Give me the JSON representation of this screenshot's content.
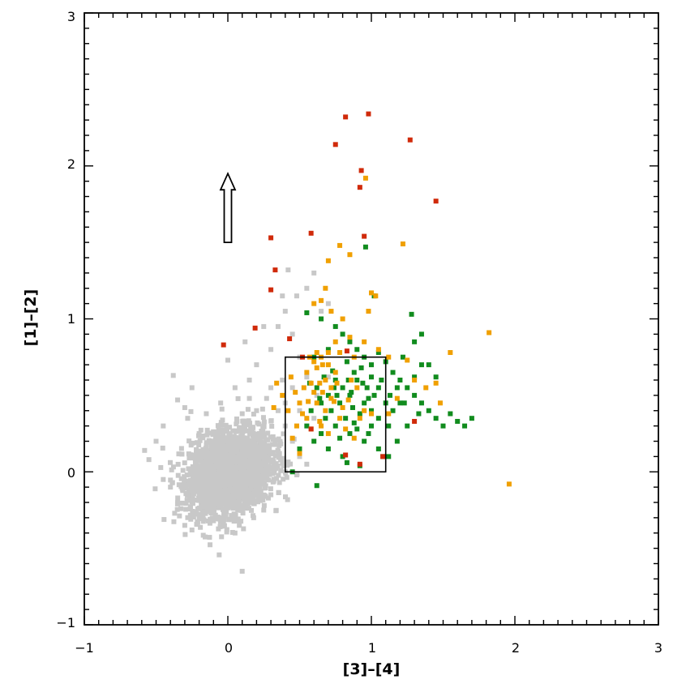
{
  "chart_data": {
    "type": "scatter",
    "title": "",
    "xlabel": "[3]–[4]",
    "ylabel": "[1]–[2]",
    "xlim": [
      -1,
      3
    ],
    "ylim": [
      -1,
      3
    ],
    "x_ticks": [
      -1,
      0,
      1,
      2,
      3
    ],
    "y_ticks": [
      -1,
      0,
      1,
      2,
      3
    ],
    "x_tick_labels": [
      "−1",
      "0",
      "1",
      "2",
      "3"
    ],
    "y_tick_labels": [
      "−1",
      "0",
      "1",
      "2",
      "3"
    ],
    "grid": false,
    "legend": "none",
    "colors": {
      "gray": "#c8c8c8",
      "green": "#118c1e",
      "orange": "#f0a000",
      "red": "#d02a0a",
      "axes": "#000000"
    },
    "box": {
      "x": [
        0.4,
        1.1
      ],
      "y": [
        0.0,
        0.75
      ]
    },
    "arrow": {
      "x": 0.0,
      "y_start": 1.5,
      "y_end": 1.95
    },
    "gray_cloud": {
      "center": [
        0.02,
        0.0
      ],
      "spread": [
        0.14,
        0.13
      ],
      "count": 2600,
      "extra_points": [
        [
          -0.58,
          0.14
        ],
        [
          -0.55,
          0.08
        ],
        [
          -0.5,
          0.2
        ],
        [
          -0.45,
          0.3
        ],
        [
          -0.38,
          0.63
        ],
        [
          -0.35,
          0.47
        ],
        [
          -0.28,
          0.35
        ],
        [
          -0.25,
          0.55
        ],
        [
          -0.3,
          0.42
        ],
        [
          -0.2,
          0.25
        ],
        [
          -0.05,
          0.45
        ],
        [
          0.05,
          0.55
        ],
        [
          0.0,
          0.73
        ],
        [
          0.12,
          0.85
        ],
        [
          0.15,
          0.6
        ],
        [
          0.2,
          0.7
        ],
        [
          0.3,
          0.8
        ],
        [
          0.35,
          0.95
        ],
        [
          0.4,
          1.05
        ],
        [
          0.45,
          0.9
        ],
        [
          0.5,
          0.75
        ],
        [
          0.55,
          0.62
        ],
        [
          0.45,
          0.55
        ],
        [
          0.55,
          1.2
        ],
        [
          0.6,
          1.3
        ],
        [
          0.7,
          1.1
        ],
        [
          0.48,
          1.15
        ],
        [
          0.25,
          0.95
        ],
        [
          0.38,
          1.15
        ],
        [
          0.42,
          1.32
        ],
        [
          0.65,
          1.05
        ],
        [
          0.3,
          0.55
        ],
        [
          0.35,
          0.4
        ],
        [
          0.4,
          0.3
        ],
        [
          0.45,
          0.2
        ],
        [
          0.5,
          0.1
        ],
        [
          0.55,
          0.05
        ],
        [
          0.6,
          0.35
        ],
        [
          0.62,
          0.5
        ],
        [
          0.7,
          0.62
        ],
        [
          0.25,
          0.3
        ],
        [
          0.33,
          0.2
        ],
        [
          0.4,
          0.45
        ],
        [
          0.5,
          0.4
        ],
        [
          0.38,
          0.6
        ],
        [
          0.27,
          0.48
        ],
        [
          0.22,
          0.12
        ],
        [
          -0.35,
          -0.2
        ],
        [
          -0.3,
          -0.35
        ],
        [
          -0.25,
          -0.38
        ],
        [
          -0.2,
          -0.3
        ],
        [
          0.05,
          -0.4
        ],
        [
          0.08,
          -0.35
        ],
        [
          0.1,
          -0.65
        ],
        [
          0.25,
          -0.25
        ],
        [
          0.3,
          -0.15
        ],
        [
          -0.4,
          -0.1
        ],
        [
          -0.45,
          -0.05
        ],
        [
          -0.1,
          -0.32
        ],
        [
          0.18,
          -0.3
        ],
        [
          0.42,
          0.05
        ],
        [
          0.48,
          -0.02
        ],
        [
          0.36,
          0.12
        ],
        [
          -0.15,
          0.38
        ],
        [
          0.1,
          0.38
        ],
        [
          0.2,
          0.4
        ],
        [
          0.15,
          0.48
        ]
      ]
    },
    "series": [
      {
        "color": "green",
        "points": [
          [
            0.55,
            1.04
          ],
          [
            0.65,
            1.0
          ],
          [
            0.7,
            0.8
          ],
          [
            0.75,
            0.95
          ],
          [
            0.8,
            0.9
          ],
          [
            0.85,
            0.85
          ],
          [
            0.9,
            0.8
          ],
          [
            0.95,
            0.75
          ],
          [
            1.0,
            0.7
          ],
          [
            1.05,
            0.78
          ],
          [
            1.1,
            0.72
          ],
          [
            1.15,
            0.65
          ],
          [
            1.2,
            0.6
          ],
          [
            1.25,
            0.55
          ],
          [
            1.3,
            0.5
          ],
          [
            1.35,
            0.45
          ],
          [
            1.4,
            0.4
          ],
          [
            1.45,
            0.35
          ],
          [
            1.5,
            0.3
          ],
          [
            1.55,
            0.38
          ],
          [
            1.6,
            0.33
          ],
          [
            1.65,
            0.3
          ],
          [
            1.7,
            0.35
          ],
          [
            1.28,
            1.03
          ],
          [
            1.3,
            0.85
          ],
          [
            1.35,
            0.9
          ],
          [
            1.22,
            0.75
          ],
          [
            1.4,
            0.7
          ],
          [
            1.45,
            0.62
          ],
          [
            0.96,
            1.47
          ],
          [
            1.02,
            1.15
          ],
          [
            0.6,
            0.75
          ],
          [
            0.62,
            0.55
          ],
          [
            0.65,
            0.45
          ],
          [
            0.7,
            0.5
          ],
          [
            0.72,
            0.4
          ],
          [
            0.75,
            0.6
          ],
          [
            0.78,
            0.45
          ],
          [
            0.8,
            0.55
          ],
          [
            0.82,
            0.35
          ],
          [
            0.85,
            0.5
          ],
          [
            0.87,
            0.42
          ],
          [
            0.9,
            0.6
          ],
          [
            0.92,
            0.38
          ],
          [
            0.95,
            0.45
          ],
          [
            0.97,
            0.55
          ],
          [
            1.0,
            0.4
          ],
          [
            1.02,
            0.5
          ],
          [
            1.05,
            0.35
          ],
          [
            1.07,
            0.6
          ],
          [
            1.1,
            0.45
          ],
          [
            0.55,
            0.3
          ],
          [
            0.6,
            0.2
          ],
          [
            0.65,
            0.25
          ],
          [
            0.7,
            0.15
          ],
          [
            0.75,
            0.3
          ],
          [
            0.8,
            0.1
          ],
          [
            0.85,
            0.25
          ],
          [
            0.9,
            0.28
          ],
          [
            0.95,
            0.2
          ],
          [
            1.0,
            0.3
          ],
          [
            1.05,
            0.15
          ],
          [
            1.08,
            0.1
          ],
          [
            0.58,
            0.4
          ],
          [
            0.68,
            0.35
          ],
          [
            0.78,
            0.22
          ],
          [
            0.88,
            0.32
          ],
          [
            0.98,
            0.25
          ],
          [
            0.5,
            0.15
          ],
          [
            0.45,
            0.0
          ],
          [
            0.62,
            -0.09
          ],
          [
            0.83,
            0.06
          ],
          [
            0.92,
            0.04
          ],
          [
            1.12,
            0.1
          ],
          [
            1.18,
            0.2
          ],
          [
            1.25,
            0.3
          ],
          [
            1.15,
            0.4
          ],
          [
            1.2,
            0.45
          ],
          [
            1.3,
            0.62
          ],
          [
            1.35,
            0.7
          ],
          [
            1.0,
            0.62
          ],
          [
            0.93,
            0.68
          ],
          [
            0.83,
            0.72
          ],
          [
            0.73,
            0.66
          ],
          [
            0.67,
            0.62
          ],
          [
            0.57,
            0.58
          ],
          [
            0.88,
            0.65
          ],
          [
            1.05,
            0.55
          ],
          [
            0.98,
            0.48
          ],
          [
            0.86,
            0.52
          ],
          [
            0.76,
            0.5
          ],
          [
            0.94,
            0.58
          ],
          [
            0.84,
            0.6
          ],
          [
            0.74,
            0.55
          ],
          [
            0.64,
            0.48
          ],
          [
            1.13,
            0.5
          ],
          [
            1.18,
            0.55
          ],
          [
            1.23,
            0.45
          ],
          [
            1.33,
            0.38
          ],
          [
            1.12,
            0.3
          ]
        ]
      },
      {
        "color": "orange",
        "points": [
          [
            0.96,
            1.92
          ],
          [
            0.78,
            1.48
          ],
          [
            1.22,
            1.49
          ],
          [
            0.7,
            1.38
          ],
          [
            0.85,
            1.42
          ],
          [
            0.68,
            1.2
          ],
          [
            0.65,
            1.12
          ],
          [
            0.72,
            1.05
          ],
          [
            0.6,
            1.1
          ],
          [
            1.0,
            1.17
          ],
          [
            1.03,
            1.15
          ],
          [
            0.98,
            1.05
          ],
          [
            0.8,
            1.0
          ],
          [
            0.75,
            0.85
          ],
          [
            0.85,
            0.88
          ],
          [
            0.95,
            0.85
          ],
          [
            0.78,
            0.78
          ],
          [
            0.88,
            0.75
          ],
          [
            1.05,
            0.8
          ],
          [
            1.12,
            0.75
          ],
          [
            1.25,
            0.73
          ],
          [
            1.3,
            0.6
          ],
          [
            1.38,
            0.55
          ],
          [
            1.45,
            0.58
          ],
          [
            1.55,
            0.78
          ],
          [
            1.82,
            0.91
          ],
          [
            1.96,
            -0.08
          ],
          [
            1.48,
            0.45
          ],
          [
            1.18,
            0.48
          ],
          [
            1.12,
            0.38
          ],
          [
            0.6,
            0.72
          ],
          [
            0.62,
            0.68
          ],
          [
            0.65,
            0.75
          ],
          [
            0.68,
            0.6
          ],
          [
            0.7,
            0.7
          ],
          [
            0.72,
            0.55
          ],
          [
            0.75,
            0.65
          ],
          [
            0.55,
            0.65
          ],
          [
            0.58,
            0.58
          ],
          [
            0.5,
            0.45
          ],
          [
            0.52,
            0.38
          ],
          [
            0.55,
            0.35
          ],
          [
            0.48,
            0.3
          ],
          [
            0.45,
            0.22
          ],
          [
            0.5,
            0.12
          ],
          [
            0.65,
            0.3
          ],
          [
            0.7,
            0.25
          ],
          [
            0.78,
            0.35
          ],
          [
            0.82,
            0.28
          ],
          [
            0.88,
            0.22
          ],
          [
            0.92,
            0.35
          ],
          [
            0.68,
            0.4
          ],
          [
            0.62,
            0.45
          ],
          [
            0.72,
            0.48
          ],
          [
            0.8,
            0.42
          ],
          [
            0.86,
            0.6
          ],
          [
            0.95,
            0.4
          ],
          [
            1.0,
            0.38
          ],
          [
            0.34,
            0.58
          ],
          [
            0.38,
            0.5
          ],
          [
            0.42,
            0.4
          ],
          [
            0.44,
            0.62
          ],
          [
            0.47,
            0.52
          ],
          [
            0.32,
            0.42
          ],
          [
            0.66,
            0.52
          ],
          [
            0.74,
            0.46
          ],
          [
            0.6,
            0.52
          ],
          [
            0.64,
            0.58
          ],
          [
            0.56,
            0.46
          ],
          [
            0.53,
            0.55
          ],
          [
            0.58,
            0.28
          ],
          [
            0.64,
            0.33
          ],
          [
            0.84,
            0.47
          ],
          [
            0.9,
            0.55
          ],
          [
            0.76,
            0.58
          ],
          [
            0.7,
            0.78
          ],
          [
            0.62,
            0.78
          ],
          [
            0.66,
            0.7
          ],
          [
            0.57,
            0.75
          ]
        ]
      },
      {
        "color": "red",
        "points": [
          [
            0.82,
            2.32
          ],
          [
            0.98,
            2.34
          ],
          [
            0.75,
            2.14
          ],
          [
            1.27,
            2.17
          ],
          [
            0.93,
            1.97
          ],
          [
            0.92,
            1.86
          ],
          [
            1.45,
            1.77
          ],
          [
            0.0,
            1.67
          ],
          [
            0.58,
            1.56
          ],
          [
            0.95,
            1.54
          ],
          [
            0.3,
            1.53
          ],
          [
            0.33,
            1.32
          ],
          [
            0.3,
            1.19
          ],
          [
            0.19,
            0.94
          ],
          [
            -0.03,
            0.83
          ],
          [
            0.43,
            0.87
          ],
          [
            0.52,
            0.75
          ],
          [
            1.3,
            0.33
          ],
          [
            0.58,
            0.28
          ],
          [
            0.82,
            0.11
          ],
          [
            0.92,
            0.05
          ],
          [
            1.08,
            0.1
          ],
          [
            0.83,
            0.79
          ]
        ]
      }
    ]
  }
}
